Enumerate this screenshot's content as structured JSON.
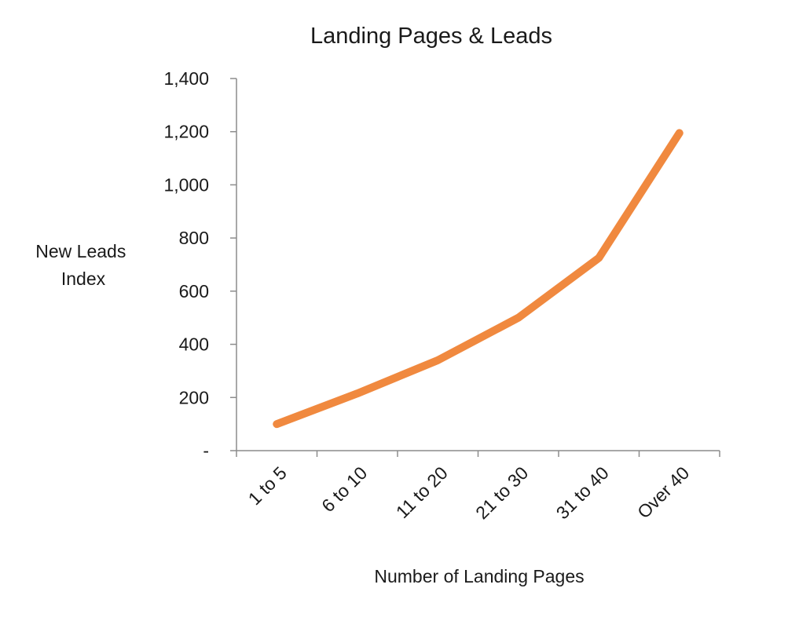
{
  "chart_data": {
    "type": "line",
    "title": "Landing Pages & Leads",
    "xlabel": "Number of Landing Pages",
    "ylabel_lines": [
      "New Leads",
      "Index"
    ],
    "categories": [
      "1 to 5",
      "6 to 10",
      "11 to 20",
      "21 to 30",
      "31 to 40",
      "Over 40"
    ],
    "series": [
      {
        "values": [
          100,
          215,
          340,
          500,
          725,
          1195
        ],
        "color": "#f0893f"
      }
    ],
    "ylim": [
      0,
      1400
    ],
    "y_ticks": [
      0,
      200,
      400,
      600,
      800,
      1000,
      1200,
      1400
    ],
    "y_tick_labels": [
      "-",
      "200",
      "400",
      "600",
      "800",
      "1,000",
      "1,200",
      "1,400"
    ],
    "grid": false,
    "legend": "none",
    "axis_color": "#8c8c8c"
  }
}
